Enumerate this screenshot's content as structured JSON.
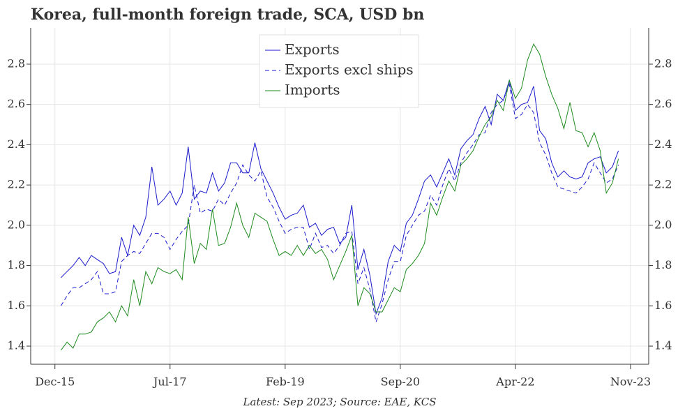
{
  "chart_data": {
    "type": "line",
    "title": "Korea, full-month foreign trade, SCA, USD bn",
    "footnote": "Latest: Sep 2023; Source: EAE, KCS",
    "x": [
      "2016-01",
      "2016-02",
      "2016-03",
      "2016-04",
      "2016-05",
      "2016-06",
      "2016-07",
      "2016-08",
      "2016-09",
      "2016-10",
      "2016-11",
      "2016-12",
      "2017-01",
      "2017-02",
      "2017-03",
      "2017-04",
      "2017-05",
      "2017-06",
      "2017-07",
      "2017-08",
      "2017-09",
      "2017-10",
      "2017-11",
      "2017-12",
      "2018-01",
      "2018-02",
      "2018-03",
      "2018-04",
      "2018-05",
      "2018-06",
      "2018-07",
      "2018-08",
      "2018-09",
      "2018-10",
      "2018-11",
      "2018-12",
      "2019-01",
      "2019-02",
      "2019-03",
      "2019-04",
      "2019-05",
      "2019-06",
      "2019-07",
      "2019-08",
      "2019-09",
      "2019-10",
      "2019-11",
      "2019-12",
      "2020-01",
      "2020-02",
      "2020-03",
      "2020-04",
      "2020-05",
      "2020-06",
      "2020-07",
      "2020-08",
      "2020-09",
      "2020-10",
      "2020-11",
      "2020-12",
      "2021-01",
      "2021-02",
      "2021-03",
      "2021-04",
      "2021-05",
      "2021-06",
      "2021-07",
      "2021-08",
      "2021-09",
      "2021-10",
      "2021-11",
      "2021-12",
      "2022-01",
      "2022-02",
      "2022-03",
      "2022-04",
      "2022-05",
      "2022-06",
      "2022-07",
      "2022-08",
      "2022-09",
      "2022-10",
      "2022-11",
      "2022-12",
      "2023-01",
      "2023-02",
      "2023-03",
      "2023-04",
      "2023-05",
      "2023-06",
      "2023-07",
      "2023-08",
      "2023-09"
    ],
    "series": [
      {
        "name": "Exports",
        "color": "#1a1acc",
        "style": "solid",
        "values": [
          1.74,
          1.77,
          1.8,
          1.84,
          1.8,
          1.85,
          1.83,
          1.81,
          1.76,
          1.77,
          1.94,
          1.85,
          2.0,
          1.95,
          2.04,
          2.29,
          2.1,
          2.13,
          2.17,
          2.1,
          2.16,
          2.39,
          2.13,
          2.17,
          2.16,
          2.26,
          2.17,
          2.21,
          2.31,
          2.31,
          2.26,
          2.26,
          2.41,
          2.28,
          2.22,
          2.16,
          2.09,
          2.03,
          2.05,
          2.06,
          2.1,
          1.99,
          2.01,
          1.95,
          1.98,
          1.99,
          1.91,
          1.94,
          2.1,
          1.78,
          1.88,
          1.75,
          1.56,
          1.64,
          1.82,
          1.9,
          1.87,
          2.01,
          2.05,
          2.13,
          2.22,
          2.25,
          2.19,
          2.26,
          2.33,
          2.25,
          2.38,
          2.42,
          2.45,
          2.53,
          2.59,
          2.5,
          2.65,
          2.62,
          2.72,
          2.57,
          2.6,
          2.61,
          2.69,
          2.47,
          2.43,
          2.31,
          2.24,
          2.27,
          2.24,
          2.23,
          2.24,
          2.31,
          2.33,
          2.34,
          2.26,
          2.29,
          2.37
        ]
      },
      {
        "name": "Exports excl ships",
        "color": "#1a1acc",
        "style": "dashed",
        "values": [
          1.6,
          1.65,
          1.69,
          1.69,
          1.71,
          1.73,
          1.77,
          1.66,
          1.66,
          1.67,
          1.82,
          1.85,
          1.87,
          1.86,
          1.91,
          1.96,
          1.96,
          1.94,
          1.88,
          1.93,
          1.97,
          2.0,
          2.2,
          2.06,
          2.08,
          2.07,
          2.13,
          2.1,
          2.16,
          2.21,
          2.3,
          2.25,
          2.22,
          2.27,
          2.14,
          2.09,
          2.02,
          1.96,
          1.98,
          1.99,
          1.99,
          1.88,
          1.96,
          1.89,
          1.9,
          1.86,
          1.9,
          1.96,
          1.97,
          1.71,
          1.79,
          1.68,
          1.52,
          1.61,
          1.73,
          1.82,
          1.82,
          1.95,
          2.0,
          2.05,
          2.07,
          2.15,
          2.1,
          2.2,
          2.28,
          2.22,
          2.31,
          2.36,
          2.4,
          2.45,
          2.46,
          2.56,
          2.6,
          2.62,
          2.7,
          2.53,
          2.55,
          2.6,
          2.56,
          2.41,
          2.35,
          2.26,
          2.19,
          2.18,
          2.17,
          2.16,
          2.19,
          2.23,
          2.31,
          2.26,
          2.21,
          2.23,
          2.3
        ]
      },
      {
        "name": "Imports",
        "color": "#1e8a1e",
        "style": "solid",
        "values": [
          1.38,
          1.42,
          1.39,
          1.46,
          1.46,
          1.47,
          1.52,
          1.54,
          1.57,
          1.52,
          1.6,
          1.55,
          1.73,
          1.6,
          1.77,
          1.71,
          1.79,
          1.77,
          1.76,
          1.78,
          1.73,
          2.04,
          1.81,
          1.91,
          1.88,
          2.08,
          1.9,
          1.91,
          1.99,
          2.11,
          2.0,
          1.94,
          2.06,
          2.04,
          2.02,
          1.93,
          1.85,
          1.87,
          1.85,
          1.9,
          1.85,
          1.9,
          1.86,
          1.88,
          1.83,
          1.73,
          1.8,
          1.87,
          1.95,
          1.6,
          1.69,
          1.66,
          1.57,
          1.57,
          1.63,
          1.69,
          1.67,
          1.78,
          1.81,
          1.85,
          1.91,
          2.11,
          2.05,
          2.14,
          2.22,
          2.17,
          2.3,
          2.33,
          2.37,
          2.44,
          2.5,
          2.54,
          2.62,
          2.57,
          2.72,
          2.63,
          2.68,
          2.82,
          2.9,
          2.85,
          2.74,
          2.65,
          2.58,
          2.48,
          2.61,
          2.47,
          2.46,
          2.39,
          2.46,
          2.37,
          2.16,
          2.21,
          2.33
        ]
      }
    ],
    "xlim": [
      "2015-08",
      "2024-02"
    ],
    "xticks": [
      {
        "value": "2015-12",
        "label": "Dec-15"
      },
      {
        "value": "2017-07",
        "label": "Jul-17"
      },
      {
        "value": "2019-02",
        "label": "Feb-19"
      },
      {
        "value": "2020-09",
        "label": "Sep-20"
      },
      {
        "value": "2022-04",
        "label": "Apr-22"
      },
      {
        "value": "2023-11",
        "label": "Nov-23"
      }
    ],
    "ylim": [
      1.31,
      2.98
    ],
    "yticks": [
      1.4,
      1.6,
      1.8,
      {
        "value": 2,
        "label": "2.0"
      },
      2.2,
      2.4,
      2.6,
      2.8
    ],
    "y2lim": [
      1.31,
      2.98
    ],
    "y2ticks": [
      1.4,
      1.6,
      1.8,
      {
        "value": 2,
        "label": "2.0"
      },
      2.2,
      2.4,
      2.6,
      2.8
    ],
    "grid": true,
    "legend": "top-center"
  }
}
